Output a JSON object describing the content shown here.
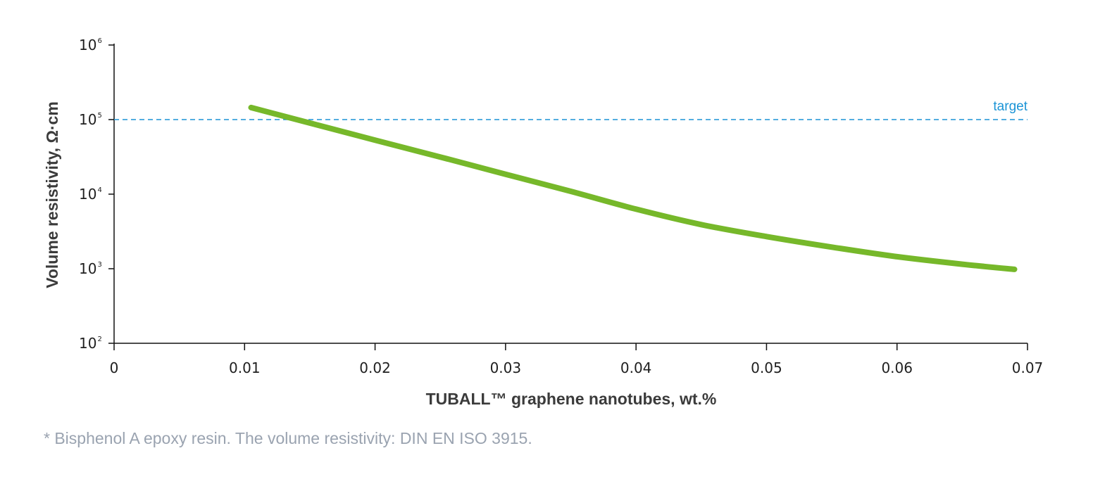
{
  "chart_data": {
    "type": "line",
    "xlabel": "TUBALL™ graphene nanotubes, wt.%",
    "ylabel": "Volume resistivity, Ω·cm",
    "y_scale": "log",
    "xlim": [
      0,
      0.07
    ],
    "ylim": [
      100,
      1000000
    ],
    "x_ticks": [
      "0",
      "0.01",
      "0.02",
      "0.03",
      "0.04",
      "0.05",
      "0.06",
      "0.07"
    ],
    "y_ticks": [
      {
        "value": 100,
        "base": "10",
        "exp": "2"
      },
      {
        "value": 1000,
        "base": "10",
        "exp": "3"
      },
      {
        "value": 10000,
        "base": "10",
        "exp": "4"
      },
      {
        "value": 100000,
        "base": "10",
        "exp": "5"
      },
      {
        "value": 1000000,
        "base": "10",
        "exp": "6"
      }
    ],
    "grid": false,
    "series": [
      {
        "color": "#76b82a",
        "x": [
          0.0105,
          0.015,
          0.02,
          0.025,
          0.03,
          0.035,
          0.04,
          0.045,
          0.05,
          0.055,
          0.06,
          0.065,
          0.069
        ],
        "y": [
          145000,
          90000,
          53000,
          31500,
          18500,
          10900,
          6300,
          3900,
          2700,
          1950,
          1450,
          1150,
          980
        ]
      }
    ],
    "reference_line": {
      "label": "target",
      "y": 100000,
      "color": "#1b94d6",
      "style": "dashed"
    }
  },
  "footnote": "* Bisphenol A epoxy resin. The volume resistivity: DIN EN ISO 3915."
}
